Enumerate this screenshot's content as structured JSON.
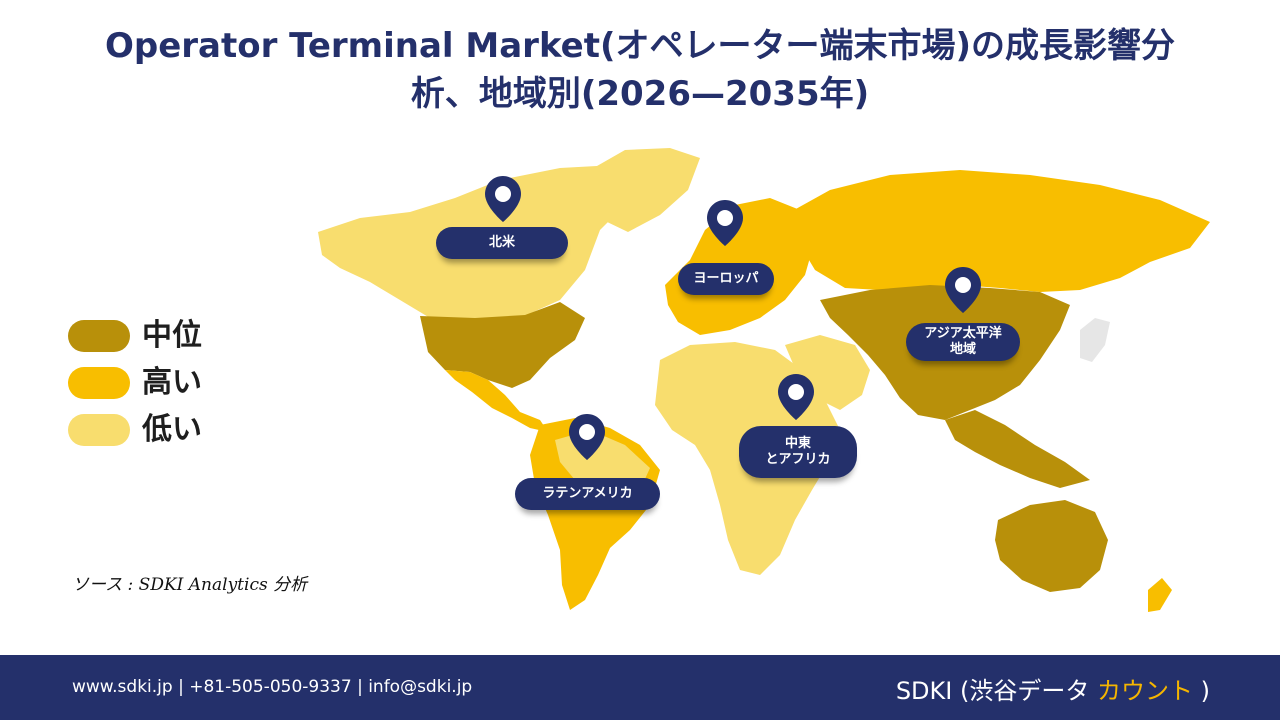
{
  "title": {
    "line1": "Operator Terminal Market(オペレーター端末市場)の成長影響分",
    "line2": "析、地域別(2026—2035年)"
  },
  "legend": [
    {
      "label": "中位",
      "color": "#b8900a"
    },
    {
      "label": "高い",
      "color": "#f8be00"
    },
    {
      "label": "低い",
      "color": "#f8dd6e"
    }
  ],
  "regions": {
    "north_america": {
      "label": "北米",
      "level": "中位"
    },
    "europe": {
      "label": "ヨーロッパ",
      "level": "高い"
    },
    "asia_pacific": {
      "line1": "アジア太平洋",
      "line2": "地域",
      "level": "中位"
    },
    "middle_east_africa": {
      "line1": "中東",
      "line2": "とアフリカ",
      "level": "低い"
    },
    "latin_america": {
      "label": "ラテンアメリカ",
      "level": "高い"
    }
  },
  "colors": {
    "navy": "#24306b",
    "mid": "#b8900a",
    "high": "#f8be00",
    "low": "#f8dd6e"
  },
  "icons": [
    "map-pin-icon"
  ],
  "source": "ソース : SDKI Analytics 分析",
  "footer": {
    "contact": "www.sdki.jp | +81-505-050-9337 | info@sdki.jp",
    "brand_prefix": "SDKI (渋谷データ",
    "brand_accent": "カウント",
    "brand_suffix": ")"
  }
}
